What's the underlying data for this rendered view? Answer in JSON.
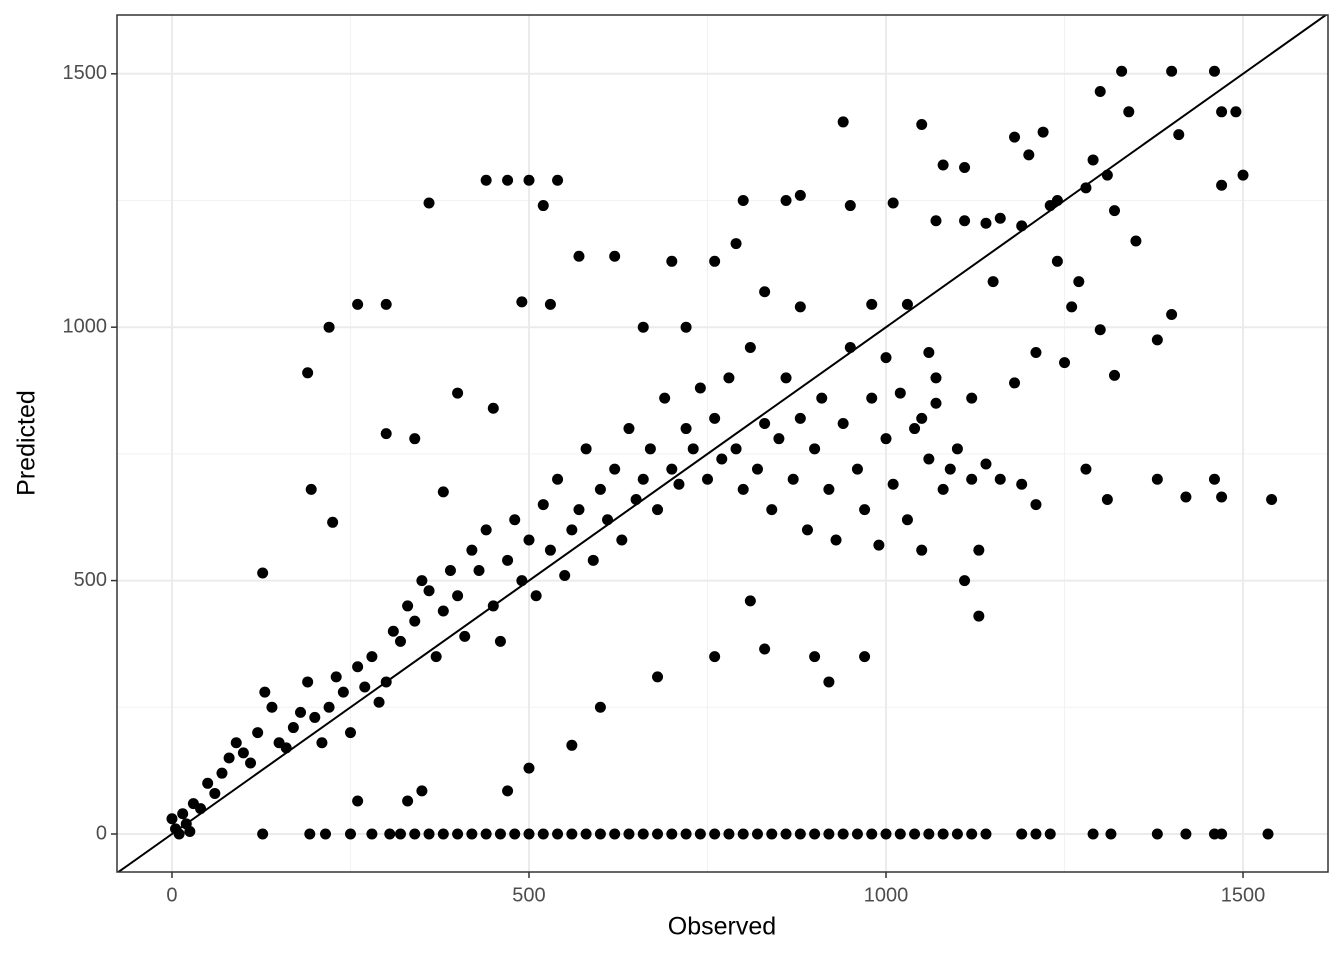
{
  "chart_data": {
    "type": "scatter",
    "xlabel": "Observed",
    "ylabel": "Predicted",
    "color": "#000000",
    "xlim": [
      -77,
      1619
    ],
    "ylim": [
      -75,
      1616
    ],
    "xticks": [
      0,
      500,
      1000,
      1500
    ],
    "yticks": [
      0,
      500,
      1000,
      1500
    ],
    "xminor": [
      250,
      750,
      1250
    ],
    "yminor": [
      250,
      750,
      1250
    ],
    "grid": true,
    "abline": {
      "intercept": 0,
      "slope": 1
    },
    "x": [
      0,
      5,
      10,
      15,
      20,
      25,
      30,
      40,
      50,
      60,
      70,
      80,
      90,
      100,
      110,
      120,
      130,
      140,
      150,
      160,
      170,
      180,
      190,
      200,
      210,
      220,
      230,
      240,
      250,
      260,
      270,
      280,
      290,
      300,
      310,
      320,
      330,
      340,
      350,
      360,
      370,
      380,
      390,
      400,
      410,
      420,
      430,
      440,
      450,
      460,
      470,
      480,
      490,
      500,
      510,
      520,
      530,
      540,
      550,
      560,
      570,
      580,
      590,
      600,
      610,
      620,
      630,
      640,
      650,
      660,
      670,
      680,
      690,
      700,
      710,
      720,
      730,
      740,
      750,
      760,
      770,
      780,
      790,
      800,
      810,
      820,
      830,
      840,
      850,
      860,
      870,
      880,
      890,
      900,
      910,
      920,
      930,
      940,
      950,
      960,
      970,
      980,
      990,
      1000,
      1010,
      1020,
      1030,
      1040,
      1050,
      1060,
      1070,
      1080,
      1090,
      1100,
      1110,
      1120,
      1130,
      1140,
      1160,
      1190,
      1210,
      190,
      127,
      220,
      260,
      300,
      360,
      440,
      470,
      500,
      520,
      540,
      570,
      620,
      700,
      760,
      790,
      800,
      860,
      880,
      940,
      950,
      1010,
      1050,
      1080,
      1110,
      1180,
      1200,
      1220,
      1240,
      1280,
      1300,
      1310,
      1330,
      1340,
      1400,
      1410,
      1460,
      1470,
      1490,
      1500,
      1470,
      1350,
      1380,
      1400,
      1300,
      1320,
      1280,
      1310,
      1380,
      1420,
      1460,
      1470,
      1540,
      1130,
      920,
      970,
      900,
      760,
      810,
      830,
      680,
      600,
      560,
      500,
      470,
      330,
      350,
      260,
      225,
      195,
      300,
      340,
      380,
      400,
      450,
      490,
      530,
      660,
      720,
      830,
      880,
      980,
      1030,
      1070,
      1110,
      1140,
      1160,
      1190,
      1230,
      1240,
      1260,
      1270,
      1290,
      1320,
      1150,
      1210,
      1250,
      1180,
      1070,
      1000,
      1060,
      1120,
      1050,
      127,
      193,
      215,
      250,
      280,
      305,
      320,
      340,
      360,
      380,
      400,
      420,
      440,
      460,
      480,
      500,
      520,
      540,
      560,
      580,
      600,
      620,
      640,
      660,
      680,
      700,
      720,
      740,
      760,
      780,
      800,
      820,
      840,
      860,
      880,
      900,
      920,
      940,
      960,
      980,
      1000,
      1020,
      1040,
      1060,
      1080,
      1100,
      1120,
      1140,
      1190,
      1210,
      1230,
      1290,
      1315,
      1380,
      1420,
      1460,
      1470,
      1535
    ],
    "values": [
      30,
      10,
      0,
      40,
      20,
      5,
      60,
      50,
      100,
      80,
      120,
      150,
      180,
      160,
      140,
      200,
      280,
      250,
      180,
      170,
      210,
      240,
      300,
      230,
      180,
      250,
      310,
      280,
      200,
      330,
      290,
      350,
      260,
      300,
      400,
      380,
      450,
      420,
      500,
      480,
      350,
      440,
      520,
      470,
      390,
      560,
      520,
      600,
      450,
      380,
      540,
      620,
      500,
      580,
      470,
      650,
      560,
      700,
      510,
      600,
      640,
      760,
      540,
      680,
      620,
      720,
      580,
      800,
      660,
      700,
      760,
      640,
      860,
      720,
      690,
      800,
      760,
      880,
      700,
      820,
      740,
      900,
      760,
      680,
      960,
      720,
      810,
      640,
      780,
      900,
      700,
      820,
      600,
      760,
      860,
      680,
      580,
      810,
      960,
      720,
      640,
      860,
      570,
      780,
      690,
      870,
      620,
      800,
      560,
      740,
      850,
      680,
      720,
      760,
      500,
      700,
      560,
      730,
      700,
      690,
      650,
      910,
      515,
      1000,
      1045,
      1045,
      1245,
      1290,
      1290,
      1290,
      1240,
      1290,
      1140,
      1140,
      1130,
      1130,
      1165,
      1250,
      1250,
      1260,
      1405,
      1240,
      1245,
      1400,
      1320,
      1315,
      1375,
      1340,
      1385,
      1250,
      1275,
      1465,
      1300,
      1505,
      1425,
      1505,
      1380,
      1505,
      1425,
      1425,
      1300,
      1280,
      1170,
      975,
      1025,
      995,
      905,
      720,
      660,
      700,
      665,
      700,
      665,
      660,
      430,
      300,
      350,
      350,
      350,
      460,
      365,
      310,
      250,
      175,
      130,
      85,
      65,
      85,
      65,
      615,
      680,
      790,
      780,
      675,
      870,
      840,
      1050,
      1045,
      1000,
      1000,
      1070,
      1040,
      1045,
      1045,
      1210,
      1210,
      1205,
      1215,
      1200,
      1240,
      1130,
      1040,
      1090,
      1330,
      1230,
      1090,
      950,
      930,
      890,
      900,
      940,
      950,
      860,
      820,
      0,
      0,
      0,
      0,
      0,
      0,
      0,
      0,
      0,
      0,
      0,
      0,
      0,
      0,
      0,
      0,
      0,
      0,
      0,
      0,
      0,
      0,
      0,
      0,
      0,
      0,
      0,
      0,
      0,
      0,
      0,
      0,
      0,
      0,
      0,
      0,
      0,
      0,
      0,
      0,
      0,
      0,
      0,
      0,
      0,
      0,
      0,
      0,
      0,
      0,
      0,
      0,
      0,
      0,
      0,
      0,
      0,
      0
    ]
  }
}
